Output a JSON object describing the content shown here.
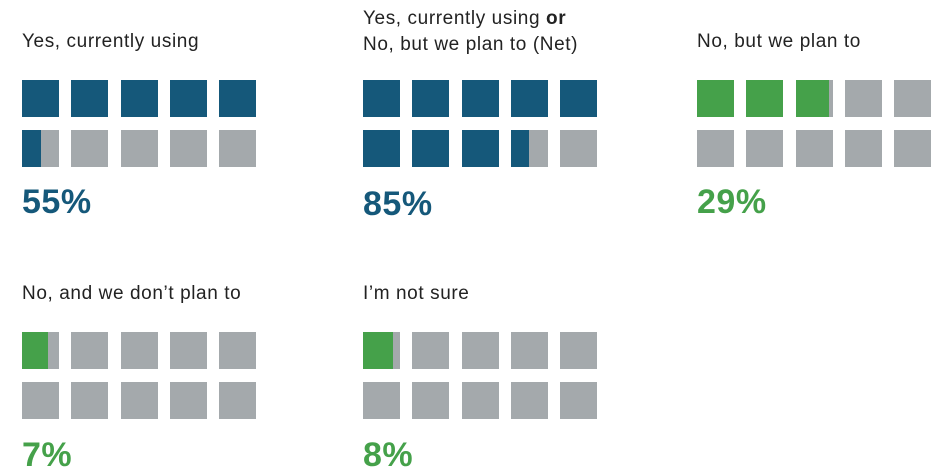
{
  "colors": {
    "blue": "#15587a",
    "green": "#45a14a",
    "empty": "#a4a9ac",
    "text": "#222222"
  },
  "chart_data": [
    {
      "type": "waffle",
      "title": "Yes, currently using",
      "value": 55,
      "value_label": "55%",
      "units": 10,
      "color": "#15587a"
    },
    {
      "type": "waffle",
      "title_parts": [
        "Yes, currently using ",
        "or",
        "No, but we plan to (Net)"
      ],
      "value": 85,
      "value_label": "85%",
      "units": 10,
      "color": "#15587a"
    },
    {
      "type": "waffle",
      "title": "No, but we plan to",
      "value": 29,
      "value_label": "29%",
      "units": 10,
      "color": "#45a14a"
    },
    {
      "type": "waffle",
      "title": "No, and we don’t plan to",
      "value": 7,
      "value_label": "7%",
      "units": 10,
      "color": "#45a14a"
    },
    {
      "type": "waffle",
      "title": "I’m not sure",
      "value": 8,
      "value_label": "8%",
      "units": 10,
      "color": "#45a14a"
    }
  ]
}
